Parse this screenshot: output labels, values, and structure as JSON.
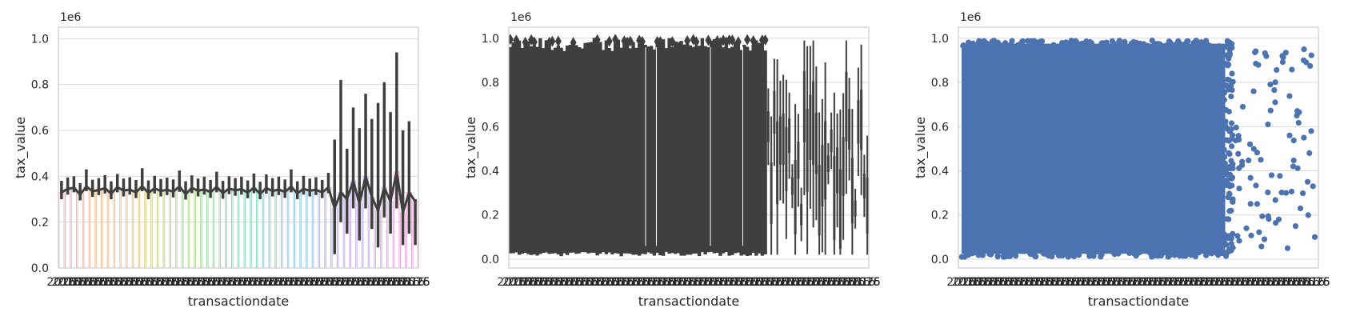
{
  "chart_data": [
    {
      "type": "bar",
      "estimator_ci": true,
      "xlabel": "transactiondate",
      "ylabel": "tax_value",
      "offset_text": "1e6",
      "ylim": [
        0,
        1050000
      ],
      "yticks": [
        0.0,
        0.2,
        0.4,
        0.6,
        0.8,
        1.0
      ],
      "grid": true,
      "n_categories": 58,
      "series": [
        {
          "values": [
            330000,
            345000,
            350000,
            320000,
            355000,
            335000,
            340000,
            348000,
            325000,
            352000,
            338000,
            342000,
            330000,
            356000,
            328000,
            347000,
            336000,
            341000,
            333000,
            355000,
            322000,
            349000,
            337000,
            343000,
            331000,
            353000,
            327000,
            346000,
            339000,
            344000,
            329000,
            350000,
            324000,
            348000,
            336000,
            342000,
            332000,
            354000,
            326000,
            345000,
            337000,
            341000,
            330000,
            351000,
            260000,
            330000,
            300000,
            380000,
            280000,
            400000,
            310000,
            250000,
            350000,
            290000,
            420000,
            240000,
            330000,
            290000
          ],
          "ci_low": [
            300000,
            320000,
            330000,
            295000,
            335000,
            310000,
            318000,
            325000,
            300000,
            330000,
            312000,
            320000,
            305000,
            335000,
            300000,
            325000,
            312000,
            318000,
            308000,
            332000,
            298000,
            326000,
            312000,
            320000,
            306000,
            330000,
            302000,
            322000,
            315000,
            320000,
            304000,
            326000,
            300000,
            324000,
            312000,
            318000,
            306000,
            330000,
            300000,
            320000,
            312000,
            318000,
            305000,
            326000,
            60000,
            200000,
            150000,
            260000,
            120000,
            260000,
            170000,
            90000,
            220000,
            150000,
            260000,
            100000,
            150000,
            100000
          ],
          "ci_high": [
            380000,
            395000,
            400000,
            370000,
            430000,
            385000,
            392000,
            405000,
            378000,
            410000,
            390000,
            396000,
            384000,
            435000,
            382000,
            402000,
            388000,
            394000,
            386000,
            425000,
            378000,
            404000,
            390000,
            398000,
            384000,
            420000,
            380000,
            400000,
            392000,
            398000,
            382000,
            412000,
            376000,
            408000,
            392000,
            398000,
            386000,
            430000,
            378000,
            402000,
            390000,
            396000,
            384000,
            415000,
            560000,
            820000,
            520000,
            700000,
            610000,
            760000,
            650000,
            720000,
            810000,
            680000,
            940000,
            600000,
            640000,
            300000
          ]
        }
      ]
    },
    {
      "type": "box",
      "xlabel": "transactiondate",
      "ylabel": "tax_value",
      "offset_text": "1e6",
      "ylim": [
        -40000,
        1050000
      ],
      "yticks": [
        0.0,
        0.2,
        0.4,
        0.6,
        0.8,
        1.0
      ],
      "grid": true,
      "n_categories": 120,
      "whisker_min": 15000,
      "whisker_max": 1000000,
      "median_approx": 330000
    },
    {
      "type": "scatter",
      "xlabel": "transactiondate",
      "ylabel": "tax_value",
      "offset_text": "1e6",
      "ylim": [
        -40000,
        1050000
      ],
      "yticks": [
        0.0,
        0.2,
        0.4,
        0.6,
        0.8,
        1.0
      ],
      "grid": true,
      "color": "#4c72b0",
      "dense_y_range": [
        10000,
        990000
      ],
      "sparse_points": [
        [
          0.76,
          840000
        ],
        [
          0.78,
          320000
        ],
        [
          0.79,
          690000
        ],
        [
          0.8,
          140000
        ],
        [
          0.81,
          520000
        ],
        [
          0.82,
          760000
        ],
        [
          0.83,
          250000
        ],
        [
          0.84,
          450000
        ],
        [
          0.85,
          90000
        ],
        [
          0.86,
          610000
        ],
        [
          0.87,
          380000
        ],
        [
          0.88,
          710000
        ],
        [
          0.89,
          180000
        ],
        [
          0.9,
          920000
        ],
        [
          0.91,
          300000
        ],
        [
          0.92,
          560000
        ],
        [
          0.93,
          420000
        ],
        [
          0.94,
          650000
        ],
        [
          0.95,
          230000
        ],
        [
          0.96,
          950000
        ],
        [
          0.97,
          350000
        ],
        [
          0.98,
          580000
        ],
        [
          0.99,
          100000
        ],
        [
          0.985,
          330000
        ],
        [
          0.975,
          480000
        ]
      ]
    }
  ]
}
